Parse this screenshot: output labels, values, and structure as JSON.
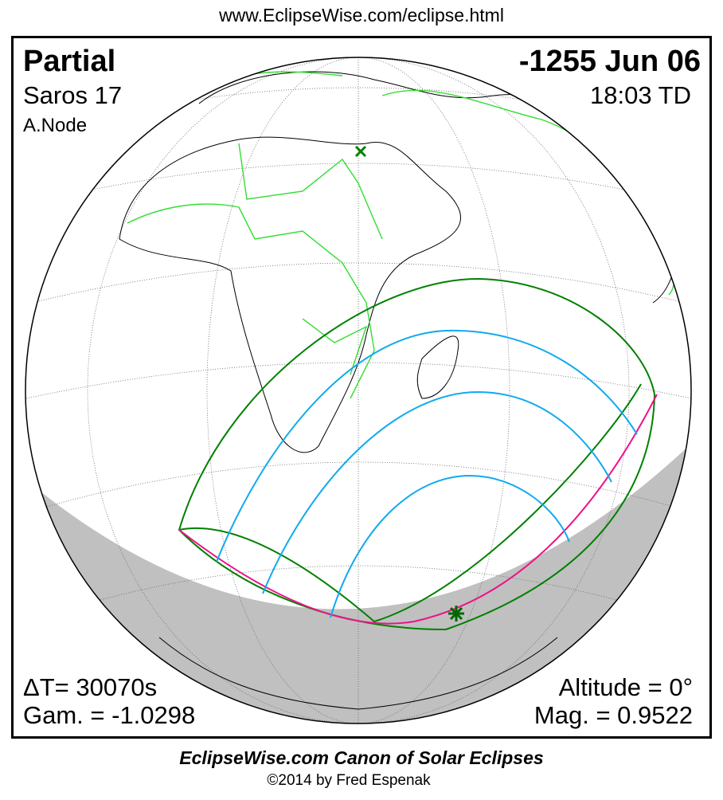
{
  "url": "www.EclipseWise.com/eclipse.html",
  "eclipse": {
    "type": "Partial",
    "date": "-1255 Jun 06",
    "saros": "Saros  17",
    "time": "18:03 TD",
    "node": "A.Node",
    "delta_t": "ΔT=  30070s",
    "altitude": "Altitude =  0°",
    "gamma": "Gam. = -1.0298",
    "magnitude": "Mag. = 0.9522"
  },
  "footer": {
    "title": "EclipseWise.com Canon of Solar Eclipses",
    "copyright": "©2014 by Fred Espenak"
  },
  "colors": {
    "borders": "#33dd33",
    "penumbra_limits": "#008000",
    "rise_set_curve": "#ee1188",
    "magnitude_curves": "#11aaee",
    "night_shading": "#c0c0c0"
  },
  "markers": [
    "greatest-eclipse-star-icon",
    "sub-solar-x-icon"
  ]
}
